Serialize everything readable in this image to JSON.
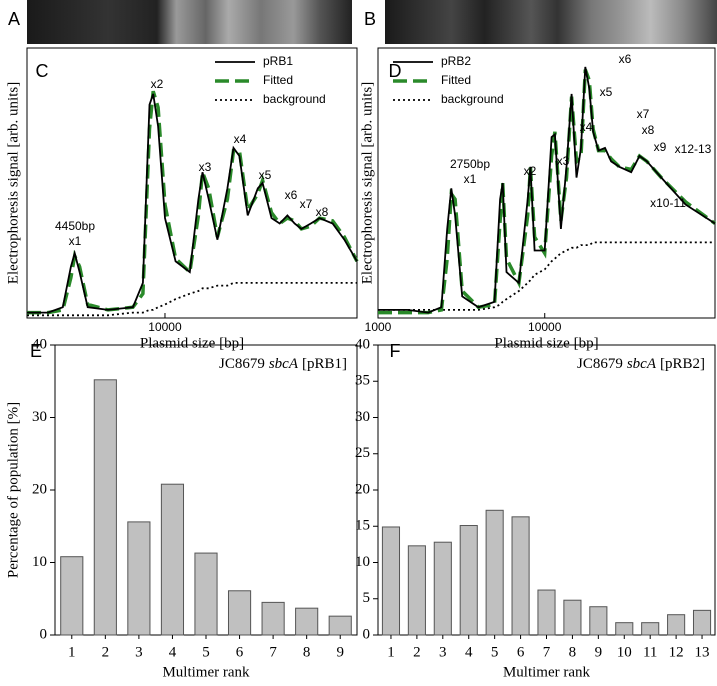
{
  "gels": [
    {
      "label": "A"
    },
    {
      "label": "B"
    }
  ],
  "chart_data": [
    {
      "type": "line",
      "label": "C",
      "log_x": true,
      "x_label": "Plasmid size [bp]",
      "y_label": "Electrophoresis signal [arb. units]",
      "xlim": [
        2900,
        56000
      ],
      "xticks": [
        10000
      ],
      "ylim": [
        0,
        100
      ],
      "legend": "top-right",
      "x": [
        2900,
        3500,
        4000,
        4300,
        4450,
        4650,
        5000,
        6000,
        7500,
        8200,
        8700,
        9000,
        9400,
        10000,
        11000,
        12500,
        13500,
        14000,
        14800,
        16000,
        17500,
        18500,
        19500,
        21000,
        23000,
        24000,
        26000,
        28000,
        30000,
        32000,
        34000,
        37000,
        40000,
        45000,
        50000,
        56000
      ],
      "series": [
        {
          "name": "pRB1",
          "color": "#000000",
          "style": "solid",
          "values": [
            2,
            2,
            4,
            19,
            24,
            17,
            4,
            3,
            4,
            13,
            79,
            83,
            71,
            37,
            21,
            17,
            44,
            54,
            44,
            29,
            48,
            63,
            60,
            38,
            48,
            50,
            37,
            35,
            38,
            35,
            33,
            35,
            37,
            35,
            29,
            21
          ]
        },
        {
          "name": "Fitted",
          "color": "#2a8a2a",
          "style": "dashed",
          "values": [
            2,
            2,
            3,
            15,
            23,
            19,
            5,
            3,
            4,
            9,
            70,
            84,
            78,
            42,
            22,
            17,
            38,
            54,
            48,
            30,
            44,
            62,
            62,
            40,
            46,
            51,
            39,
            35,
            37,
            36,
            33,
            34,
            37,
            36,
            30,
            21
          ]
        },
        {
          "name": "background",
          "color": "#000000",
          "style": "dotted",
          "values": [
            1,
            1,
            1,
            1,
            1,
            1,
            1,
            1,
            2,
            2,
            3,
            3,
            4,
            5,
            7,
            9,
            10,
            11,
            11,
            12,
            12,
            13,
            13,
            13,
            13,
            13,
            13,
            13,
            13,
            13,
            13,
            13,
            13,
            13,
            13,
            13
          ]
        }
      ],
      "annotations": [
        "4450bp",
        "x1",
        "x2",
        "x3",
        "x4",
        "x5",
        "x6",
        "x7",
        "x8"
      ]
    },
    {
      "type": "line",
      "label": "D",
      "log_x": true,
      "x_label": "Plasmid size [bp]",
      "y_label": "Electrophoresis signal [arb. units]",
      "xlim": [
        1000,
        105000
      ],
      "xticks": [
        1000,
        10000
      ],
      "ylim": [
        0,
        100
      ],
      "legend": "top-left",
      "x": [
        1000,
        1500,
        2000,
        2400,
        2600,
        2750,
        2900,
        3200,
        4000,
        5000,
        5400,
        5600,
        5900,
        7000,
        7900,
        8200,
        8700,
        10000,
        11000,
        11500,
        12500,
        13500,
        14500,
        15500,
        16500,
        17500,
        18500,
        19500,
        21000,
        23000,
        25000,
        28000,
        33000,
        37000,
        41000,
        50000,
        70000,
        105000
      ],
      "series": [
        {
          "name": "pRB2",
          "color": "#000000",
          "style": "solid",
          "values": [
            3,
            3,
            2,
            4,
            33,
            48,
            38,
            8,
            4,
            6,
            44,
            50,
            17,
            13,
            44,
            56,
            25,
            25,
            67,
            68,
            33,
            56,
            83,
            52,
            63,
            93,
            85,
            69,
            62,
            63,
            58,
            56,
            54,
            60,
            58,
            52,
            42,
            35
          ]
        },
        {
          "name": "Fitted",
          "color": "#2a8a2a",
          "style": "dashed",
          "values": [
            2,
            2,
            2,
            3,
            22,
            46,
            44,
            10,
            4,
            5,
            36,
            50,
            22,
            13,
            38,
            56,
            30,
            24,
            60,
            69,
            36,
            52,
            82,
            58,
            60,
            92,
            88,
            70,
            62,
            62,
            59,
            56,
            55,
            60,
            58,
            52,
            43,
            35
          ]
        },
        {
          "name": "background",
          "color": "#000000",
          "style": "dotted",
          "values": [
            3,
            3,
            3,
            3,
            3,
            3,
            3,
            3,
            3,
            4,
            5,
            6,
            7,
            10,
            13,
            14,
            16,
            18,
            21,
            22,
            24,
            25,
            26,
            26,
            27,
            27,
            27,
            28,
            28,
            28,
            28,
            28,
            28,
            28,
            28,
            28,
            28,
            28
          ]
        }
      ],
      "annotations": [
        "2750bp",
        "x1",
        "x2",
        "x3",
        "x4",
        "x5",
        "x6",
        "x7",
        "x8",
        "x9",
        "x10-11",
        "x12-13"
      ]
    },
    {
      "type": "bar",
      "label": "E",
      "x_label": "Multimer rank",
      "y_label": "Percentage of population [%]",
      "annotation_parts": [
        "JC8679",
        "sbcA",
        "[pRB1]"
      ],
      "categories": [
        1,
        2,
        3,
        4,
        5,
        6,
        7,
        8,
        9
      ],
      "values": [
        10.8,
        35.2,
        15.6,
        20.8,
        11.3,
        6.1,
        4.5,
        3.7,
        2.6
      ],
      "color": "#c0c0c0",
      "ylim": [
        0,
        40
      ],
      "yticks": [
        0,
        10,
        20,
        30,
        40
      ]
    },
    {
      "type": "bar",
      "label": "F",
      "x_label": "Multimer rank",
      "annotation_parts": [
        "JC8679",
        "sbcA",
        "[pRB2]"
      ],
      "categories": [
        1,
        2,
        3,
        4,
        5,
        6,
        7,
        8,
        9,
        10,
        11,
        12,
        13
      ],
      "values": [
        14.9,
        12.3,
        12.8,
        15.1,
        17.2,
        16.3,
        6.2,
        4.8,
        3.9,
        1.7,
        1.7,
        2.8,
        3.4
      ],
      "color": "#c0c0c0",
      "ylim": [
        0,
        40
      ],
      "yticks": [
        0,
        5,
        10,
        15,
        20,
        25,
        30,
        35,
        40
      ]
    }
  ]
}
